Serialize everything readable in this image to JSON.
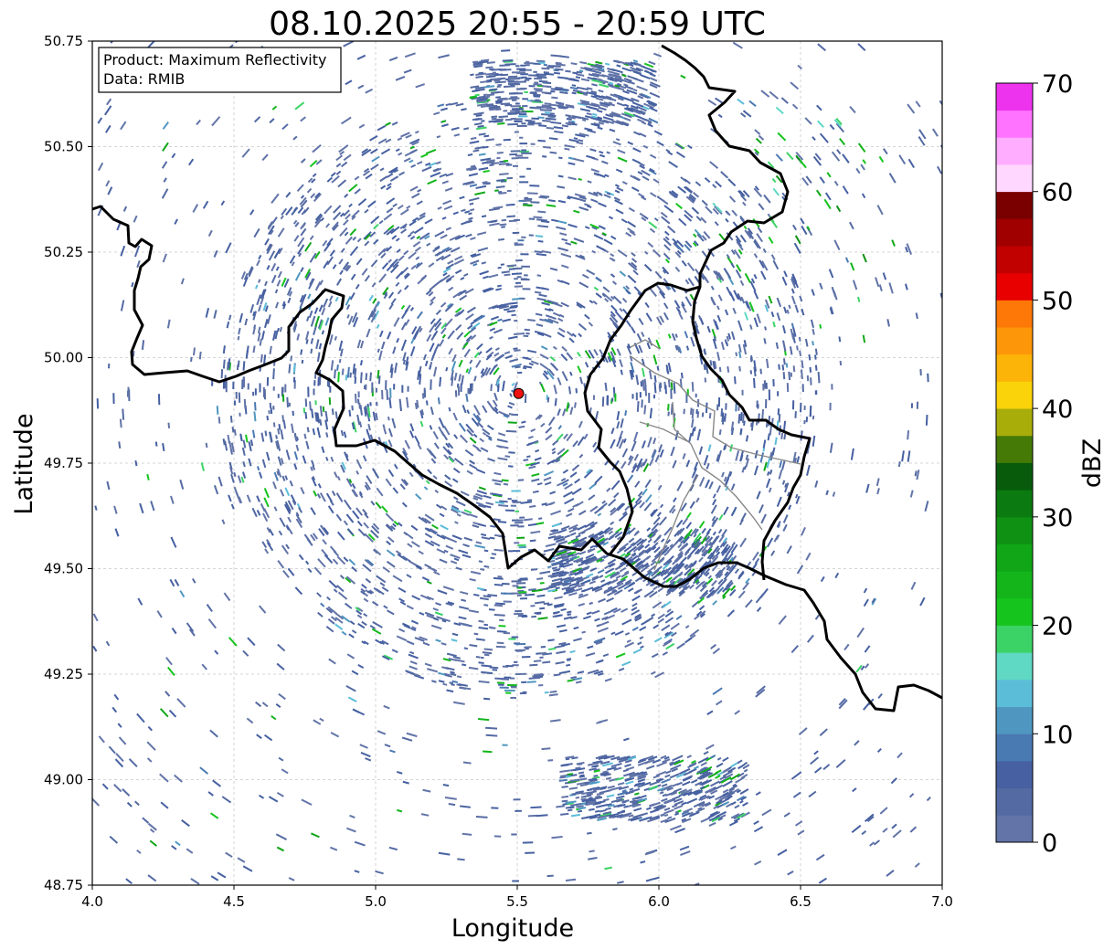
{
  "chart_data": {
    "type": "heatmap",
    "title": "08.10.2025 20:55 - 20:59 UTC",
    "xlabel": "Longitude",
    "ylabel": "Latitude",
    "xlim": [
      4.0,
      7.0
    ],
    "ylim": [
      48.75,
      50.75
    ],
    "xticks": [
      4.0,
      4.5,
      5.0,
      5.5,
      6.0,
      6.5,
      7.0
    ],
    "xtick_labels": [
      "4.0",
      "4.5",
      "5.0",
      "5.5",
      "6.0",
      "6.5",
      "7.0"
    ],
    "yticks": [
      48.75,
      49.0,
      49.25,
      49.5,
      49.75,
      50.0,
      50.25,
      50.5,
      50.75
    ],
    "ytick_labels": [
      "48.75",
      "49.00",
      "49.25",
      "49.50",
      "49.75",
      "50.00",
      "50.25",
      "50.50",
      "50.75"
    ],
    "grid": true,
    "info_box": {
      "line1": "Product: Maximum Reflectivity",
      "line2": "Data: RMIB"
    },
    "radar_site": {
      "lon": 5.505,
      "lat": 49.915,
      "color": "#ee1111"
    },
    "colorbar": {
      "label": "dBZ",
      "min": 0,
      "max": 70,
      "ticks": [
        0,
        10,
        20,
        30,
        40,
        50,
        60,
        70
      ],
      "tick_labels": [
        "0",
        "10",
        "20",
        "30",
        "40",
        "50",
        "60",
        "70"
      ],
      "colors": [
        "#6274a8",
        "#546aa3",
        "#4660a1",
        "#4a7ab2",
        "#4f97c0",
        "#5cbdd8",
        "#5fd8c4",
        "#3cd366",
        "#16c41e",
        "#13b51b",
        "#10a617",
        "#0f9114",
        "#0b7a10",
        "#075b0b",
        "#457a06",
        "#a9ad0a",
        "#fad30a",
        "#fdb408",
        "#fd9608",
        "#fd7807",
        "#e80000",
        "#c10000",
        "#a10000",
        "#7a0000",
        "#ffd7ff",
        "#ffadff",
        "#ff73ff",
        "#ee33ee"
      ]
    },
    "echo_regions": [
      {
        "name": "central ring",
        "lon": 5.55,
        "lat": 49.85,
        "r_deg": 0.62,
        "mean_dbz": 3
      },
      {
        "name": "northern arc",
        "lon": 5.65,
        "lat": 50.63,
        "mean_dbz": 5
      },
      {
        "name": "south-east band",
        "lon": 5.95,
        "lat": 49.52,
        "mean_dbz": 8
      },
      {
        "name": "southern patch",
        "lon": 6.0,
        "lat": 48.98,
        "mean_dbz": 5
      },
      {
        "name": "north-east cells",
        "lon": 6.45,
        "lat": 50.35,
        "mean_dbz": 22
      }
    ]
  }
}
